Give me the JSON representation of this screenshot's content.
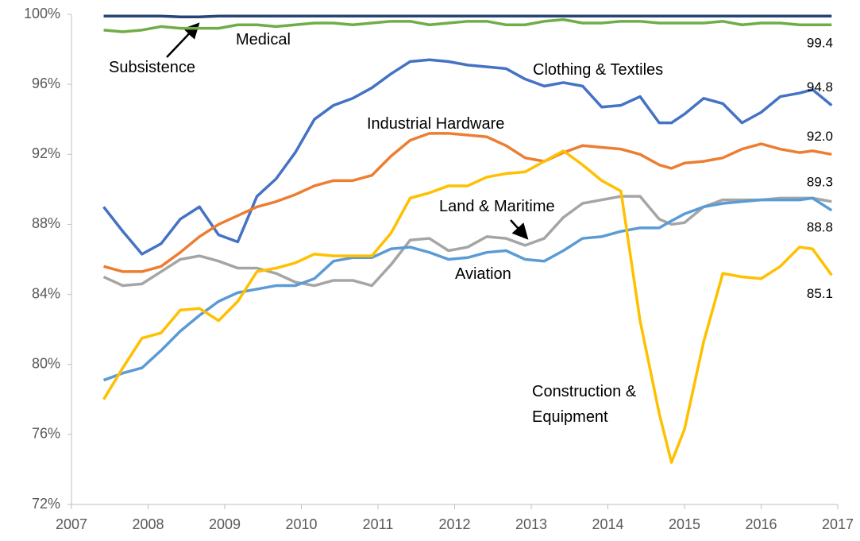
{
  "chart_data": {
    "type": "line",
    "x": [
      2007.42,
      2007.67,
      2007.92,
      2008.17,
      2008.42,
      2008.67,
      2008.92,
      2009.17,
      2009.42,
      2009.67,
      2009.92,
      2010.17,
      2010.42,
      2010.67,
      2010.92,
      2011.17,
      2011.42,
      2011.67,
      2011.92,
      2012.17,
      2012.42,
      2012.67,
      2012.92,
      2013.17,
      2013.42,
      2013.67,
      2013.92,
      2014.17,
      2014.42,
      2014.67,
      2014.83,
      2015.0,
      2015.25,
      2015.5,
      2015.75,
      2016.0,
      2016.25,
      2016.5,
      2016.67,
      2016.92
    ],
    "xlim": [
      2007,
      2017
    ],
    "xticks": [
      2007,
      2008,
      2009,
      2010,
      2011,
      2012,
      2013,
      2014,
      2015,
      2016,
      2017
    ],
    "ylim": [
      72,
      100
    ],
    "yticks": [
      {
        "value": 72,
        "label": "72%"
      },
      {
        "value": 76,
        "label": "76%"
      },
      {
        "value": 80,
        "label": "80%"
      },
      {
        "value": 84,
        "label": "84%"
      },
      {
        "value": 88,
        "label": "88%"
      },
      {
        "value": 92,
        "label": "92%"
      },
      {
        "value": 96,
        "label": "96%"
      },
      {
        "value": 100,
        "label": "100%"
      }
    ],
    "grid": false,
    "series": [
      {
        "name": "Subsistence",
        "color": "#264478",
        "values": [
          99.9,
          99.9,
          99.9,
          99.9,
          99.85,
          99.85,
          99.9,
          99.9,
          99.9,
          99.9,
          99.9,
          99.9,
          99.9,
          99.9,
          99.9,
          99.9,
          99.9,
          99.9,
          99.9,
          99.9,
          99.9,
          99.9,
          99.9,
          99.9,
          99.9,
          99.9,
          99.9,
          99.9,
          99.9,
          99.9,
          99.9,
          99.9,
          99.9,
          99.9,
          99.9,
          99.9,
          99.9,
          99.9,
          99.9,
          99.9
        ]
      },
      {
        "name": "Medical",
        "color": "#70ad47",
        "values": [
          99.1,
          99.0,
          99.1,
          99.3,
          99.2,
          99.2,
          99.2,
          99.4,
          99.4,
          99.3,
          99.4,
          99.5,
          99.5,
          99.4,
          99.5,
          99.6,
          99.6,
          99.4,
          99.5,
          99.6,
          99.6,
          99.4,
          99.4,
          99.6,
          99.7,
          99.5,
          99.5,
          99.6,
          99.6,
          99.5,
          99.5,
          99.5,
          99.5,
          99.6,
          99.4,
          99.5,
          99.5,
          99.4,
          99.4,
          99.4
        ],
        "value_labels": [
          null,
          null,
          null,
          null,
          null,
          null,
          null,
          null,
          null,
          null,
          null,
          null,
          null,
          null,
          null,
          null,
          null,
          null,
          null,
          null,
          null,
          null,
          null,
          null,
          null,
          null,
          null,
          null,
          null,
          null,
          null,
          null,
          null,
          null,
          null,
          null,
          null,
          null,
          null,
          "99.4"
        ]
      },
      {
        "name": "Clothing & Textiles",
        "color": "#4472c4",
        "values": [
          89.0,
          87.6,
          86.3,
          86.9,
          88.3,
          89.0,
          87.4,
          87.0,
          89.6,
          90.6,
          92.1,
          94.0,
          94.8,
          95.2,
          95.8,
          96.6,
          97.3,
          97.4,
          97.3,
          97.1,
          97.0,
          96.9,
          96.3,
          95.9,
          96.1,
          95.9,
          94.7,
          94.8,
          95.3,
          93.8,
          93.8,
          94.3,
          95.2,
          94.9,
          93.8,
          94.4,
          95.3,
          95.5,
          95.7,
          94.8
        ],
        "value_labels": [
          null,
          null,
          null,
          null,
          null,
          null,
          null,
          null,
          null,
          null,
          null,
          null,
          null,
          null,
          null,
          null,
          null,
          null,
          null,
          null,
          null,
          null,
          null,
          null,
          null,
          null,
          null,
          null,
          null,
          null,
          null,
          null,
          null,
          null,
          null,
          null,
          null,
          null,
          null,
          "94.8"
        ]
      },
      {
        "name": "Industrial Hardware",
        "color": "#ed7d31",
        "values": [
          85.6,
          85.3,
          85.3,
          85.6,
          86.4,
          87.3,
          88.0,
          88.5,
          89.0,
          89.3,
          89.7,
          90.2,
          90.5,
          90.5,
          90.8,
          91.9,
          92.8,
          93.2,
          93.2,
          93.1,
          93.0,
          92.5,
          91.8,
          91.6,
          92.1,
          92.5,
          92.4,
          92.3,
          92.0,
          91.4,
          91.2,
          91.5,
          91.6,
          91.8,
          92.3,
          92.6,
          92.3,
          92.1,
          92.2,
          92.0
        ],
        "value_labels": [
          null,
          null,
          null,
          null,
          null,
          null,
          null,
          null,
          null,
          null,
          null,
          null,
          null,
          null,
          null,
          null,
          null,
          null,
          null,
          null,
          null,
          null,
          null,
          null,
          null,
          null,
          null,
          null,
          null,
          null,
          null,
          null,
          null,
          null,
          null,
          null,
          null,
          null,
          null,
          "92.0"
        ]
      },
      {
        "name": "Land & Maritime",
        "color": "#a5a5a5",
        "values": [
          85.0,
          84.5,
          84.6,
          85.3,
          86.0,
          86.2,
          85.9,
          85.5,
          85.5,
          85.2,
          84.7,
          84.5,
          84.8,
          84.8,
          84.5,
          85.7,
          87.1,
          87.2,
          86.5,
          86.7,
          87.3,
          87.2,
          86.8,
          87.2,
          88.4,
          89.2,
          89.4,
          89.6,
          89.6,
          88.3,
          88.0,
          88.1,
          89.0,
          89.4,
          89.4,
          89.4,
          89.5,
          89.5,
          89.5,
          89.3
        ],
        "value_labels": [
          null,
          null,
          null,
          null,
          null,
          null,
          null,
          null,
          null,
          null,
          null,
          null,
          null,
          null,
          null,
          null,
          null,
          null,
          null,
          null,
          null,
          null,
          null,
          null,
          null,
          null,
          null,
          null,
          null,
          null,
          null,
          null,
          null,
          null,
          null,
          null,
          null,
          null,
          null,
          "89.3"
        ]
      },
      {
        "name": "Aviation",
        "color": "#5b9bd5",
        "values": [
          79.1,
          79.5,
          79.8,
          80.8,
          81.9,
          82.8,
          83.6,
          84.1,
          84.3,
          84.5,
          84.5,
          84.9,
          85.9,
          86.1,
          86.1,
          86.6,
          86.7,
          86.4,
          86.0,
          86.1,
          86.4,
          86.5,
          86.0,
          85.9,
          86.5,
          87.2,
          87.3,
          87.6,
          87.8,
          87.8,
          88.2,
          88.6,
          89.0,
          89.2,
          89.3,
          89.4,
          89.4,
          89.4,
          89.5,
          88.8
        ],
        "value_labels": [
          null,
          null,
          null,
          null,
          null,
          null,
          null,
          null,
          null,
          null,
          null,
          null,
          null,
          null,
          null,
          null,
          null,
          null,
          null,
          null,
          null,
          null,
          null,
          null,
          null,
          null,
          null,
          null,
          null,
          null,
          null,
          null,
          null,
          null,
          null,
          null,
          null,
          null,
          null,
          "88.8"
        ]
      },
      {
        "name": "Construction & Equipment",
        "color": "#ffc000",
        "values": [
          78.0,
          79.8,
          81.5,
          81.8,
          83.1,
          83.2,
          82.5,
          83.6,
          85.3,
          85.5,
          85.8,
          86.3,
          86.2,
          86.2,
          86.2,
          87.5,
          89.5,
          89.8,
          90.2,
          90.2,
          90.7,
          90.9,
          91.0,
          91.6,
          92.2,
          91.4,
          90.5,
          89.9,
          82.5,
          77.2,
          74.4,
          76.3,
          81.3,
          85.2,
          85.0,
          84.9,
          85.6,
          86.7,
          86.6,
          85.1
        ],
        "value_labels": [
          null,
          null,
          null,
          null,
          null,
          null,
          null,
          null,
          null,
          null,
          null,
          null,
          null,
          null,
          null,
          null,
          null,
          null,
          null,
          null,
          null,
          null,
          null,
          null,
          null,
          null,
          null,
          null,
          null,
          null,
          null,
          null,
          null,
          null,
          null,
          null,
          null,
          null,
          null,
          "85.1"
        ]
      }
    ]
  }
}
